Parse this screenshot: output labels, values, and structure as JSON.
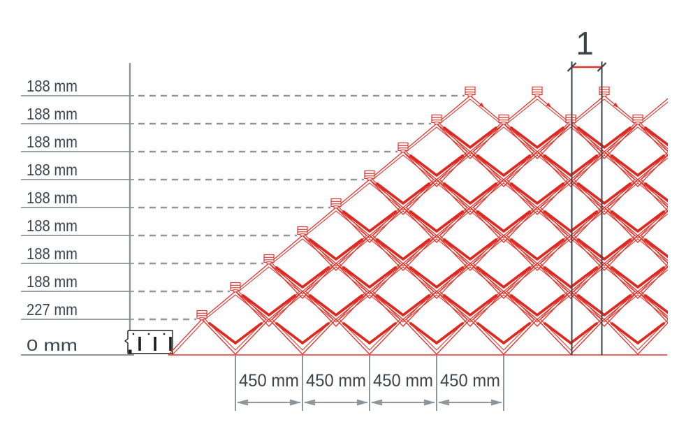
{
  "diagram": {
    "type": "technical-cross-section",
    "left_axis": {
      "labels": [
        "188 mm",
        "188 mm",
        "188 mm",
        "188 mm",
        "188 mm",
        "188 mm",
        "188 mm",
        "188 mm",
        "227 mm",
        "0 mm"
      ]
    },
    "bottom_dimensions": {
      "labels": [
        "450 mm",
        "450 mm",
        "450 mm",
        "450 mm"
      ]
    },
    "callout": {
      "label": "1"
    },
    "colors": {
      "red": "#E4332B",
      "thick_red": "#DC2A21",
      "gray": "#8C959C",
      "label_text": "#3A454D",
      "callout_dark": "#3A4245",
      "black": "#1D1D1B"
    }
  }
}
